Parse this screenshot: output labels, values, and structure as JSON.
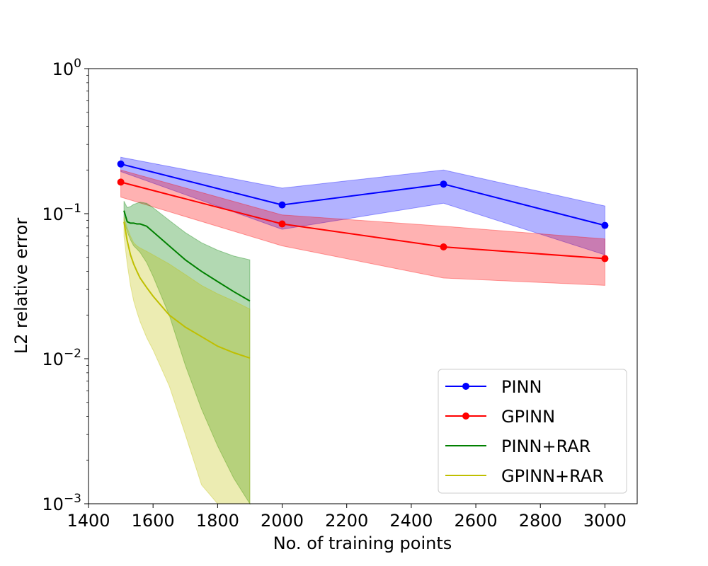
{
  "chart_data": {
    "type": "line",
    "title": "",
    "xlabel": "No. of training points",
    "ylabel": "L2 relative error",
    "xlim": [
      1400,
      3100
    ],
    "ylim": [
      0.001,
      1
    ],
    "yscale": "log",
    "grid": false,
    "legend_position": "bottom-right",
    "xticks": [
      1400,
      1600,
      1800,
      2000,
      2200,
      2400,
      2600,
      2800,
      3000
    ],
    "xtick_labels": [
      "1400",
      "1600",
      "1800",
      "2000",
      "2200",
      "2400",
      "2600",
      "2800",
      "3000"
    ],
    "yticks": [
      {
        "value": 1,
        "base": "10",
        "exp": "0"
      },
      {
        "value": 0.1,
        "base": "10",
        "exp": "−1"
      },
      {
        "value": 0.01,
        "base": "10",
        "exp": "−2"
      },
      {
        "value": 0.001,
        "base": "10",
        "exp": "−3"
      }
    ],
    "series": [
      {
        "name": "PINN",
        "color": "#0000ff",
        "band_color": "#0000ff",
        "markers": true,
        "x": [
          1500,
          2000,
          2500,
          3000
        ],
        "y": [
          0.22,
          0.115,
          0.16,
          0.083
        ],
        "lower": [
          0.195,
          0.078,
          0.118,
          0.052
        ],
        "upper": [
          0.245,
          0.15,
          0.2,
          0.113
        ]
      },
      {
        "name": "GPINN",
        "color": "#ff0000",
        "band_color": "#ff0000",
        "markers": true,
        "x": [
          1500,
          2000,
          2500,
          3000
        ],
        "y": [
          0.165,
          0.085,
          0.059,
          0.049
        ],
        "lower": [
          0.13,
          0.06,
          0.036,
          0.032
        ],
        "upper": [
          0.2,
          0.098,
          0.082,
          0.067
        ]
      },
      {
        "name": "PINN+RAR",
        "color": "#008000",
        "band_color": "#008000",
        "markers": false,
        "x": [
          1510,
          1520,
          1530,
          1540,
          1550,
          1560,
          1580,
          1600,
          1650,
          1700,
          1750,
          1800,
          1850,
          1900
        ],
        "y": [
          0.105,
          0.088,
          0.086,
          0.086,
          0.085,
          0.085,
          0.082,
          0.075,
          0.06,
          0.048,
          0.04,
          0.034,
          0.029,
          0.025
        ],
        "lower": [
          0.09,
          0.075,
          0.066,
          0.06,
          0.057,
          0.054,
          0.046,
          0.037,
          0.02,
          0.009,
          0.0045,
          0.0025,
          0.0015,
          0.001
        ],
        "upper": [
          0.122,
          0.11,
          0.112,
          0.116,
          0.118,
          0.12,
          0.118,
          0.11,
          0.09,
          0.074,
          0.063,
          0.056,
          0.051,
          0.048
        ]
      },
      {
        "name": "GPINN+RAR",
        "color": "#bfbf00",
        "band_color": "#bfbf00",
        "markers": false,
        "x": [
          1510,
          1520,
          1530,
          1540,
          1550,
          1560,
          1580,
          1600,
          1650,
          1700,
          1750,
          1800,
          1850,
          1900
        ],
        "y": [
          0.088,
          0.065,
          0.052,
          0.045,
          0.04,
          0.036,
          0.031,
          0.027,
          0.02,
          0.0165,
          0.0142,
          0.0122,
          0.011,
          0.0101
        ],
        "lower": [
          0.07,
          0.045,
          0.032,
          0.025,
          0.021,
          0.018,
          0.014,
          0.0115,
          0.0065,
          0.003,
          0.00135,
          0.001,
          0.001,
          0.001
        ],
        "upper": [
          0.095,
          0.08,
          0.07,
          0.063,
          0.06,
          0.058,
          0.055,
          0.052,
          0.045,
          0.038,
          0.032,
          0.028,
          0.025,
          0.022
        ]
      }
    ]
  }
}
